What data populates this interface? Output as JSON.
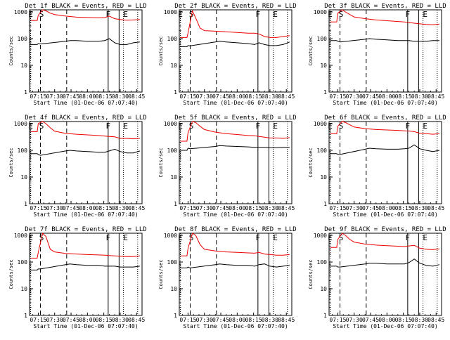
{
  "window": {
    "title": ""
  },
  "colors": {
    "events": "#000000",
    "lld": "#ee0000",
    "background": "#ffffff"
  },
  "chart_data": {
    "type": "line",
    "layout": "3x3 grid",
    "shared": {
      "ylabel": "Counts/sec",
      "xlabel": "Start Time (01-Dec-06 07:07:40)",
      "x_ticks": [
        "07:15",
        "07:30",
        "07:45",
        "08:00",
        "08:15",
        "08:30",
        "08:45"
      ],
      "x_tick_minutes": [
        15,
        30,
        45,
        60,
        75,
        90,
        105
      ],
      "y_ticks": [
        "1",
        "10",
        "100",
        "1000"
      ],
      "y_tick_values": [
        1,
        10,
        100,
        1000
      ],
      "xlim_minutes": [
        7,
        110
      ],
      "ylim": [
        1,
        1200
      ],
      "yscale": "log",
      "grid": false,
      "markers": [
        {
          "label": "E",
          "minute": 8,
          "style": "dotted"
        },
        {
          "label": "S",
          "minute": 17,
          "style": "dashed"
        },
        {
          "label": "",
          "minute": 41,
          "style": "dashed"
        },
        {
          "label": "F",
          "minute": 79,
          "style": "solid"
        },
        {
          "label": "",
          "minute": 89,
          "style": "solid"
        },
        {
          "label": "E",
          "minute": 93,
          "style": "dotted"
        },
        {
          "label": "",
          "minute": 106,
          "style": "dotted"
        }
      ],
      "annotation_positions_minutes": {
        "E_left": 8,
        "S": 18,
        "F": 79,
        "E_right": 95
      }
    },
    "panels": [
      {
        "title": "Det 1f BLACK = Events, RED = LLD",
        "events": {
          "name": "Events",
          "x": [
            8,
            14,
            15,
            17,
            40,
            44,
            50,
            60,
            70,
            76,
            80,
            85,
            90,
            96,
            102,
            108
          ],
          "y": [
            60,
            60,
            65,
            63,
            80,
            85,
            85,
            80,
            80,
            85,
            100,
            70,
            60,
            60,
            70,
            75
          ]
        },
        "lld": {
          "name": "LLD",
          "x": [
            8,
            14,
            15,
            19,
            22,
            26,
            30,
            40,
            50,
            60,
            70,
            76,
            80,
            85,
            90,
            96,
            102,
            108
          ],
          "y": [
            480,
            480,
            750,
            1200,
            1100,
            900,
            800,
            700,
            640,
            620,
            600,
            620,
            700,
            560,
            520,
            490,
            500,
            520
          ]
        }
      },
      {
        "title": "Det 2f BLACK = Events, RED = LLD",
        "events": {
          "name": "Events",
          "x": [
            8,
            14,
            15,
            17,
            40,
            44,
            50,
            60,
            70,
            76,
            80,
            85,
            90,
            96,
            102,
            108
          ],
          "y": [
            50,
            50,
            55,
            54,
            75,
            80,
            75,
            70,
            65,
            60,
            70,
            60,
            55,
            55,
            60,
            75
          ]
        },
        "lld": {
          "name": "LLD",
          "x": [
            8,
            14,
            15,
            19,
            22,
            26,
            30,
            40,
            50,
            60,
            70,
            76,
            80,
            85,
            90,
            96,
            102,
            108
          ],
          "y": [
            110,
            110,
            160,
            1100,
            600,
            250,
            200,
            190,
            180,
            170,
            160,
            160,
            150,
            120,
            110,
            110,
            120,
            130
          ]
        }
      },
      {
        "title": "Det 3f BLACK = Events, RED = LLD",
        "events": {
          "name": "Events",
          "x": [
            8,
            14,
            15,
            17,
            40,
            44,
            50,
            60,
            70,
            76,
            80,
            85,
            90,
            96,
            102,
            108
          ],
          "y": [
            85,
            85,
            80,
            75,
            95,
            100,
            95,
            90,
            85,
            85,
            85,
            80,
            80,
            80,
            85,
            85
          ]
        },
        "lld": {
          "name": "LLD",
          "x": [
            8,
            14,
            15,
            19,
            22,
            26,
            30,
            40,
            50,
            60,
            70,
            76,
            80,
            85,
            90,
            96,
            102,
            108
          ],
          "y": [
            420,
            420,
            900,
            1200,
            1000,
            800,
            650,
            560,
            500,
            470,
            440,
            420,
            400,
            380,
            360,
            340,
            330,
            350
          ]
        }
      },
      {
        "title": "Det 4f BLACK = Events, RED = LLD",
        "events": {
          "name": "Events",
          "x": [
            8,
            14,
            15,
            17,
            40,
            44,
            50,
            60,
            70,
            76,
            80,
            85,
            90,
            96,
            102,
            108
          ],
          "y": [
            75,
            75,
            70,
            65,
            95,
            100,
            95,
            90,
            85,
            85,
            95,
            110,
            90,
            80,
            80,
            95
          ]
        },
        "lld": {
          "name": "LLD",
          "x": [
            8,
            14,
            15,
            19,
            22,
            26,
            30,
            40,
            50,
            60,
            70,
            76,
            80,
            85,
            90,
            96,
            102,
            108
          ],
          "y": [
            500,
            500,
            1000,
            1200,
            1000,
            700,
            520,
            430,
            400,
            380,
            360,
            340,
            330,
            320,
            280,
            280,
            270,
            280
          ]
        }
      },
      {
        "title": "Det 5f BLACK = Events, RED = LLD",
        "events": {
          "name": "Events",
          "x": [
            8,
            14,
            15,
            17,
            40,
            44,
            50,
            60,
            70,
            76,
            80,
            85,
            90,
            96,
            102,
            108
          ],
          "y": [
            100,
            100,
            120,
            115,
            140,
            150,
            145,
            140,
            135,
            130,
            130,
            130,
            125,
            125,
            130,
            130
          ]
        },
        "lld": {
          "name": "LLD",
          "x": [
            8,
            14,
            15,
            19,
            22,
            26,
            30,
            40,
            50,
            60,
            70,
            76,
            80,
            85,
            90,
            96,
            102,
            108
          ],
          "y": [
            220,
            220,
            450,
            1200,
            1100,
            800,
            600,
            480,
            420,
            390,
            360,
            350,
            330,
            310,
            290,
            290,
            280,
            300
          ]
        }
      },
      {
        "title": "Det 6f BLACK = Events, RED = LLD",
        "events": {
          "name": "Events",
          "x": [
            8,
            14,
            15,
            17,
            40,
            44,
            50,
            60,
            70,
            76,
            80,
            85,
            90,
            96,
            102,
            108
          ],
          "y": [
            75,
            75,
            70,
            70,
            110,
            120,
            115,
            110,
            110,
            115,
            120,
            160,
            115,
            100,
            90,
            100
          ]
        },
        "lld": {
          "name": "LLD",
          "x": [
            8,
            14,
            15,
            19,
            22,
            26,
            30,
            40,
            50,
            60,
            70,
            76,
            80,
            85,
            90,
            96,
            102,
            108
          ],
          "y": [
            420,
            420,
            800,
            1200,
            1100,
            900,
            750,
            650,
            600,
            580,
            560,
            540,
            530,
            500,
            440,
            420,
            400,
            420
          ]
        }
      },
      {
        "title": "Det 7f BLACK = Events, RED = LLD",
        "events": {
          "name": "Events",
          "x": [
            8,
            14,
            15,
            17,
            40,
            44,
            50,
            60,
            70,
            76,
            80,
            85,
            90,
            96,
            102,
            108
          ],
          "y": [
            50,
            50,
            55,
            55,
            80,
            85,
            80,
            75,
            75,
            70,
            70,
            70,
            65,
            65,
            65,
            70
          ]
        },
        "lld": {
          "name": "LLD",
          "x": [
            8,
            14,
            15,
            19,
            22,
            26,
            30,
            40,
            50,
            60,
            70,
            76,
            80,
            85,
            90,
            96,
            102,
            108
          ],
          "y": [
            140,
            140,
            230,
            1200,
            900,
            300,
            240,
            210,
            200,
            190,
            185,
            180,
            175,
            170,
            165,
            160,
            160,
            170
          ]
        }
      },
      {
        "title": "Det 8f BLACK = Events, RED = LLD",
        "events": {
          "name": "Events",
          "x": [
            8,
            14,
            15,
            17,
            40,
            44,
            50,
            60,
            70,
            76,
            80,
            85,
            90,
            96,
            102,
            108
          ],
          "y": [
            60,
            60,
            65,
            60,
            80,
            85,
            80,
            75,
            75,
            70,
            80,
            85,
            70,
            65,
            70,
            75
          ]
        },
        "lld": {
          "name": "LLD",
          "x": [
            8,
            14,
            15,
            19,
            22,
            26,
            30,
            40,
            50,
            60,
            70,
            76,
            80,
            85,
            90,
            96,
            102,
            108
          ],
          "y": [
            170,
            170,
            320,
            1200,
            1000,
            450,
            300,
            260,
            240,
            230,
            220,
            215,
            230,
            200,
            190,
            180,
            180,
            190
          ]
        }
      },
      {
        "title": "Det 9f BLACK = Events, RED = LLD",
        "events": {
          "name": "Events",
          "x": [
            8,
            14,
            15,
            17,
            40,
            44,
            50,
            60,
            70,
            76,
            80,
            85,
            90,
            96,
            102,
            108
          ],
          "y": [
            70,
            70,
            65,
            65,
            85,
            90,
            90,
            85,
            85,
            85,
            95,
            130,
            90,
            75,
            70,
            80
          ]
        },
        "lld": {
          "name": "LLD",
          "x": [
            8,
            14,
            15,
            19,
            22,
            26,
            30,
            40,
            50,
            60,
            70,
            76,
            80,
            85,
            90,
            96,
            102,
            108
          ],
          "y": [
            350,
            350,
            700,
            1200,
            1000,
            700,
            560,
            470,
            430,
            410,
            390,
            380,
            400,
            420,
            330,
            300,
            290,
            310
          ]
        }
      }
    ]
  }
}
